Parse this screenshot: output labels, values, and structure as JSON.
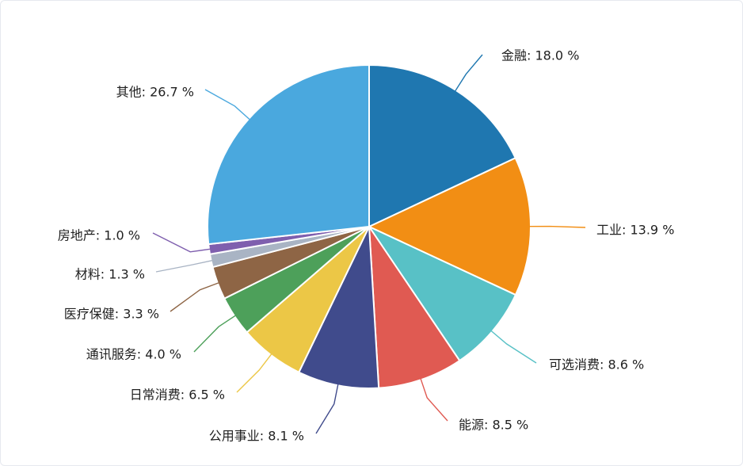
{
  "chart_data": {
    "type": "pie",
    "title": "",
    "slices": [
      {
        "name": "金融",
        "value": 18.0,
        "label": "金融: 18.0 %",
        "color": "#1f77b0"
      },
      {
        "name": "工业",
        "value": 13.9,
        "label": "工业: 13.9 %",
        "color": "#f28e14"
      },
      {
        "name": "可选消费",
        "value": 8.6,
        "label": "可选消费: 8.6 %",
        "color": "#58c1c6"
      },
      {
        "name": "能源",
        "value": 8.5,
        "label": "能源: 8.5 %",
        "color": "#e05a52"
      },
      {
        "name": "公用事业",
        "value": 8.1,
        "label": "公用事业: 8.1 %",
        "color": "#404b8c"
      },
      {
        "name": "日常消费",
        "value": 6.5,
        "label": "日常消费: 6.5 %",
        "color": "#ecc746"
      },
      {
        "name": "通讯服务",
        "value": 4.0,
        "label": "通讯服务: 4.0 %",
        "color": "#4da05a"
      },
      {
        "name": "医疗保健",
        "value": 3.3,
        "label": "医疗保健: 3.3 %",
        "color": "#8e6545"
      },
      {
        "name": "材料",
        "value": 1.3,
        "label": "材料: 1.3 %",
        "color": "#a9b4c4"
      },
      {
        "name": "房地产",
        "value": 1.0,
        "label": "房地产: 1.0 %",
        "color": "#7f5fae"
      },
      {
        "name": "其他",
        "value": 26.7,
        "label": "其他: 26.7 %",
        "color": "#4aa8de"
      }
    ],
    "start_angle_deg": 0,
    "direction": "clockwise",
    "legend": "none",
    "leader_lines": true
  }
}
